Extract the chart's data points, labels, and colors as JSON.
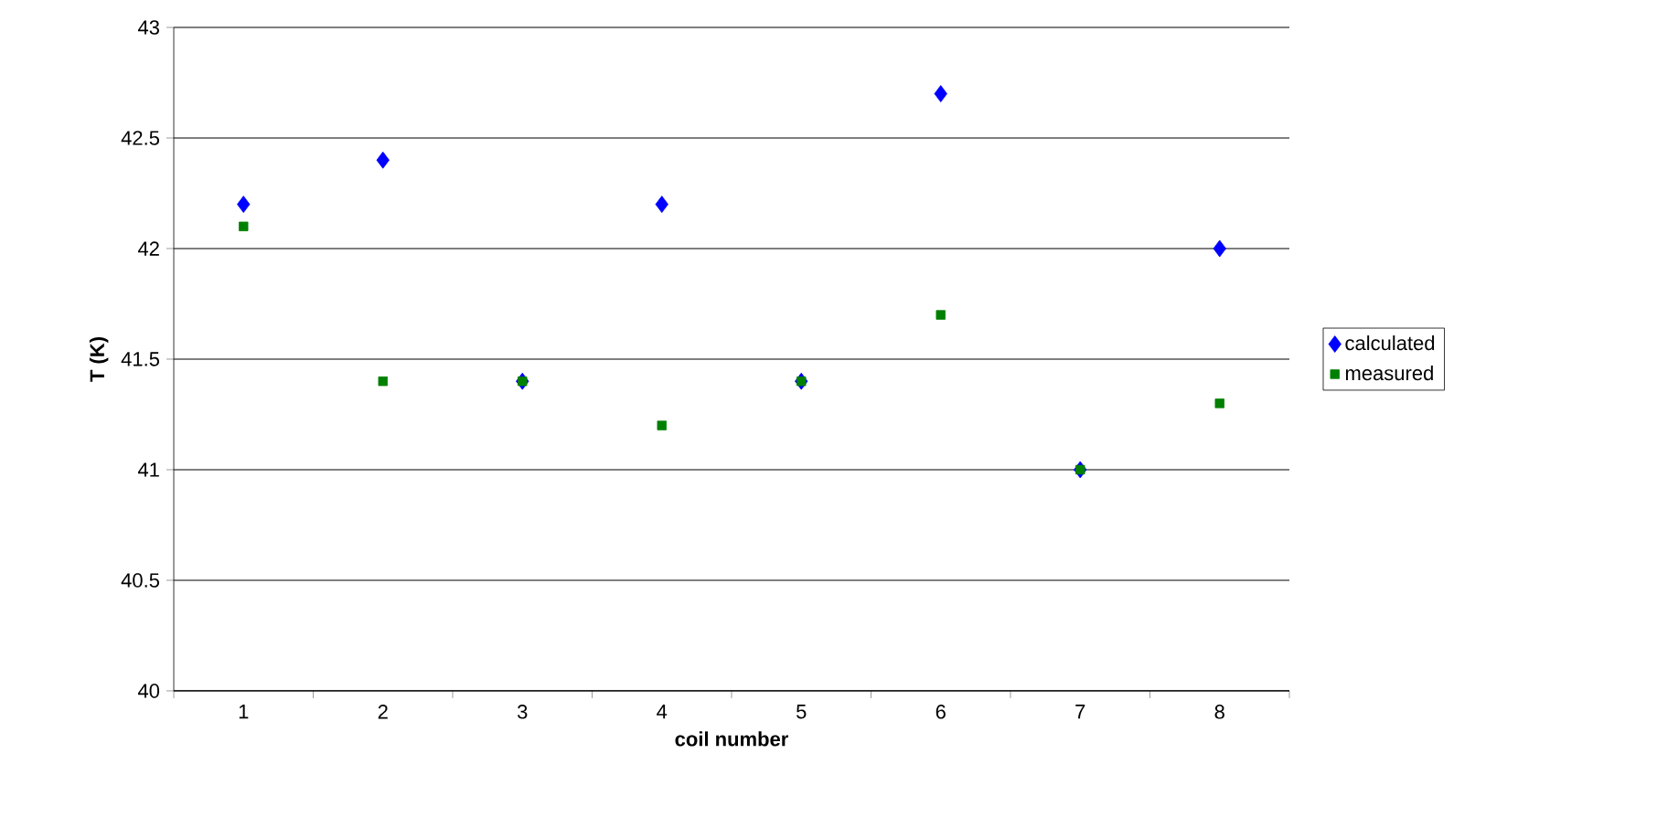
{
  "chart_data": {
    "type": "scatter",
    "xlabel": "coil number",
    "ylabel": "T (K)",
    "categories": [
      "1",
      "2",
      "3",
      "4",
      "5",
      "6",
      "7",
      "8"
    ],
    "series": [
      {
        "name": "calculated",
        "color": "#0000ff",
        "marker": "diamond",
        "values": [
          42.2,
          42.4,
          41.4,
          42.2,
          41.4,
          42.7,
          41.0,
          42.0
        ]
      },
      {
        "name": "measured",
        "color": "#008000",
        "marker": "square",
        "values": [
          42.1,
          41.4,
          41.4,
          41.2,
          41.4,
          41.7,
          41.0,
          41.3
        ]
      }
    ],
    "ylim": [
      40,
      43
    ],
    "yticks": [
      40,
      40.5,
      41,
      41.5,
      42,
      42.5,
      43
    ],
    "grid": "y",
    "legend": "right"
  }
}
